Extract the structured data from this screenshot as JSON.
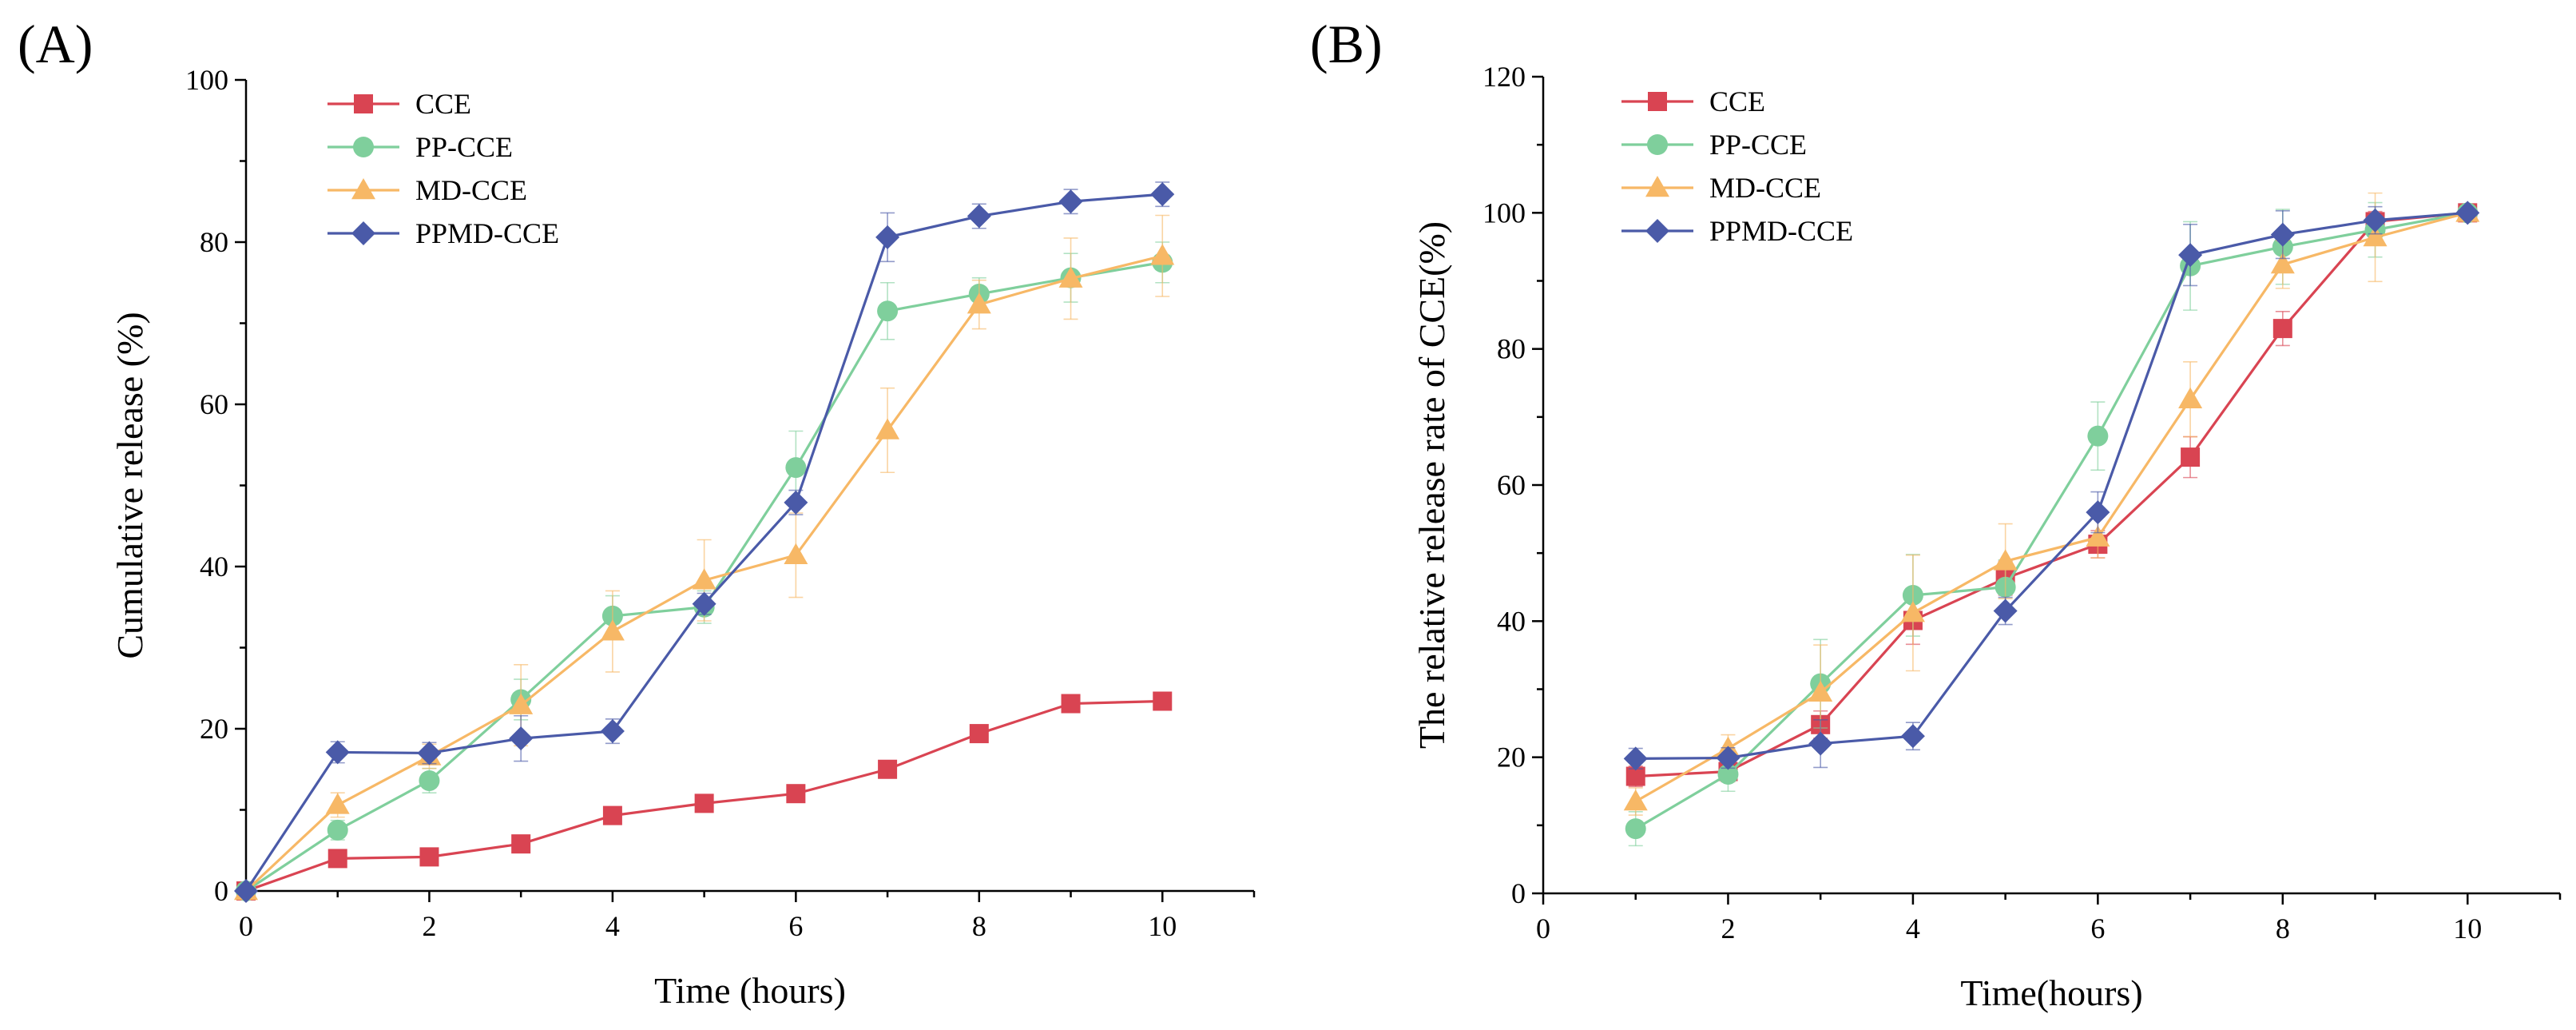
{
  "colors": {
    "CCE": "#d94452",
    "PP-CCE": "#7fcf9c",
    "MD-CCE": "#f7b866",
    "PPMD-CCE": "#4a5aa8"
  },
  "markers": {
    "CCE": "square",
    "PP-CCE": "circle",
    "MD-CCE": "triangle",
    "PPMD-CCE": "diamond"
  },
  "chart_data": [
    {
      "type": "line",
      "panel_label": "(A)",
      "xlabel": "Time (hours)",
      "ylabel": "Cumulative release (%)",
      "xlim": [
        0,
        11
      ],
      "ylim": [
        0,
        100
      ],
      "xticks": [
        0,
        2,
        4,
        6,
        8,
        10
      ],
      "yticks": [
        0,
        20,
        40,
        60,
        80,
        100
      ],
      "legend_position": "top-left",
      "series": [
        {
          "name": "CCE",
          "x": [
            0,
            1,
            2,
            3,
            4,
            5,
            6,
            7,
            8,
            9,
            10
          ],
          "y": [
            0,
            4,
            4.2,
            5.8,
            9.3,
            10.8,
            12,
            15,
            19.4,
            23.1,
            23.4
          ],
          "err": [
            0,
            0.5,
            0.5,
            0.6,
            0.8,
            0.8,
            0.8,
            0.9,
            1.0,
            1.0,
            1.0
          ]
        },
        {
          "name": "PP-CCE",
          "x": [
            0,
            1,
            2,
            3,
            4,
            5,
            6,
            7,
            8,
            9,
            10
          ],
          "y": [
            0,
            7.5,
            13.6,
            23.6,
            33.9,
            35,
            52.2,
            71.5,
            73.6,
            75.6,
            77.5
          ],
          "err": [
            0,
            1.2,
            1.5,
            2.5,
            2.5,
            2.0,
            4.5,
            3.5,
            2.0,
            3.0,
            2.5
          ]
        },
        {
          "name": "MD-CCE",
          "x": [
            0,
            1,
            2,
            3,
            4,
            5,
            6,
            7,
            8,
            9,
            10
          ],
          "y": [
            0,
            10.6,
            16.6,
            22.9,
            32,
            38.3,
            41.4,
            56.8,
            72.3,
            75.5,
            78.3
          ],
          "err": [
            0,
            1.5,
            1.5,
            5.0,
            5.0,
            5.0,
            5.2,
            5.2,
            3.0,
            5.0,
            5.0
          ]
        },
        {
          "name": "PPMD-CCE",
          "x": [
            0,
            1,
            2,
            3,
            4,
            5,
            6,
            7,
            8,
            9,
            10
          ],
          "y": [
            0,
            17.1,
            17,
            18.8,
            19.7,
            35.4,
            47.9,
            80.6,
            83.2,
            85,
            85.9
          ],
          "err": [
            0,
            1.3,
            1.3,
            2.8,
            1.5,
            1.3,
            1.5,
            3.0,
            1.5,
            1.5,
            1.5
          ]
        }
      ]
    },
    {
      "type": "line",
      "panel_label": "(B)",
      "xlabel": "Time(hours)",
      "ylabel": "The relative release rate of CCE(%)",
      "xlim": [
        0,
        11
      ],
      "ylim": [
        0,
        120
      ],
      "xticks": [
        0,
        2,
        4,
        6,
        8,
        10
      ],
      "yticks": [
        0,
        20,
        40,
        60,
        80,
        100,
        120
      ],
      "legend_position": "top-left",
      "series": [
        {
          "name": "CCE",
          "x": [
            1,
            2,
            3,
            4,
            5,
            6,
            7,
            8,
            9,
            10
          ],
          "y": [
            17.2,
            17.9,
            24.8,
            40.1,
            46.3,
            51.3,
            64.1,
            83,
            98.7,
            100
          ],
          "err": [
            1.5,
            1.5,
            2.0,
            3.5,
            2.5,
            2.0,
            3.0,
            2.5,
            1.5,
            0.5
          ]
        },
        {
          "name": "PP-CCE",
          "x": [
            1,
            2,
            3,
            4,
            5,
            6,
            7,
            8,
            9,
            10
          ],
          "y": [
            9.5,
            17.5,
            30.8,
            43.8,
            45,
            67.2,
            92.2,
            95,
            97.5,
            100
          ],
          "err": [
            2.5,
            2.5,
            6.5,
            6.0,
            4.0,
            5.0,
            6.5,
            5.5,
            4.0,
            0.5
          ]
        },
        {
          "name": "MD-CCE",
          "x": [
            1,
            2,
            3,
            4,
            5,
            6,
            7,
            8,
            9,
            10
          ],
          "y": [
            13.5,
            21.3,
            29.5,
            41.2,
            48.8,
            52.3,
            72.6,
            92.4,
            96.4,
            100
          ],
          "err": [
            2.0,
            2.0,
            7.0,
            8.5,
            5.5,
            3.0,
            5.5,
            3.5,
            6.5,
            0.5
          ]
        },
        {
          "name": "PPMD-CCE",
          "x": [
            1,
            2,
            3,
            4,
            5,
            6,
            7,
            8,
            9,
            10
          ],
          "y": [
            19.8,
            19.9,
            22,
            23.1,
            41.5,
            56,
            93.8,
            96.8,
            98.9,
            100
          ],
          "err": [
            1.5,
            1.5,
            3.5,
            2.0,
            2.0,
            3.0,
            4.5,
            3.5,
            2.0,
            0.5
          ]
        }
      ]
    }
  ]
}
